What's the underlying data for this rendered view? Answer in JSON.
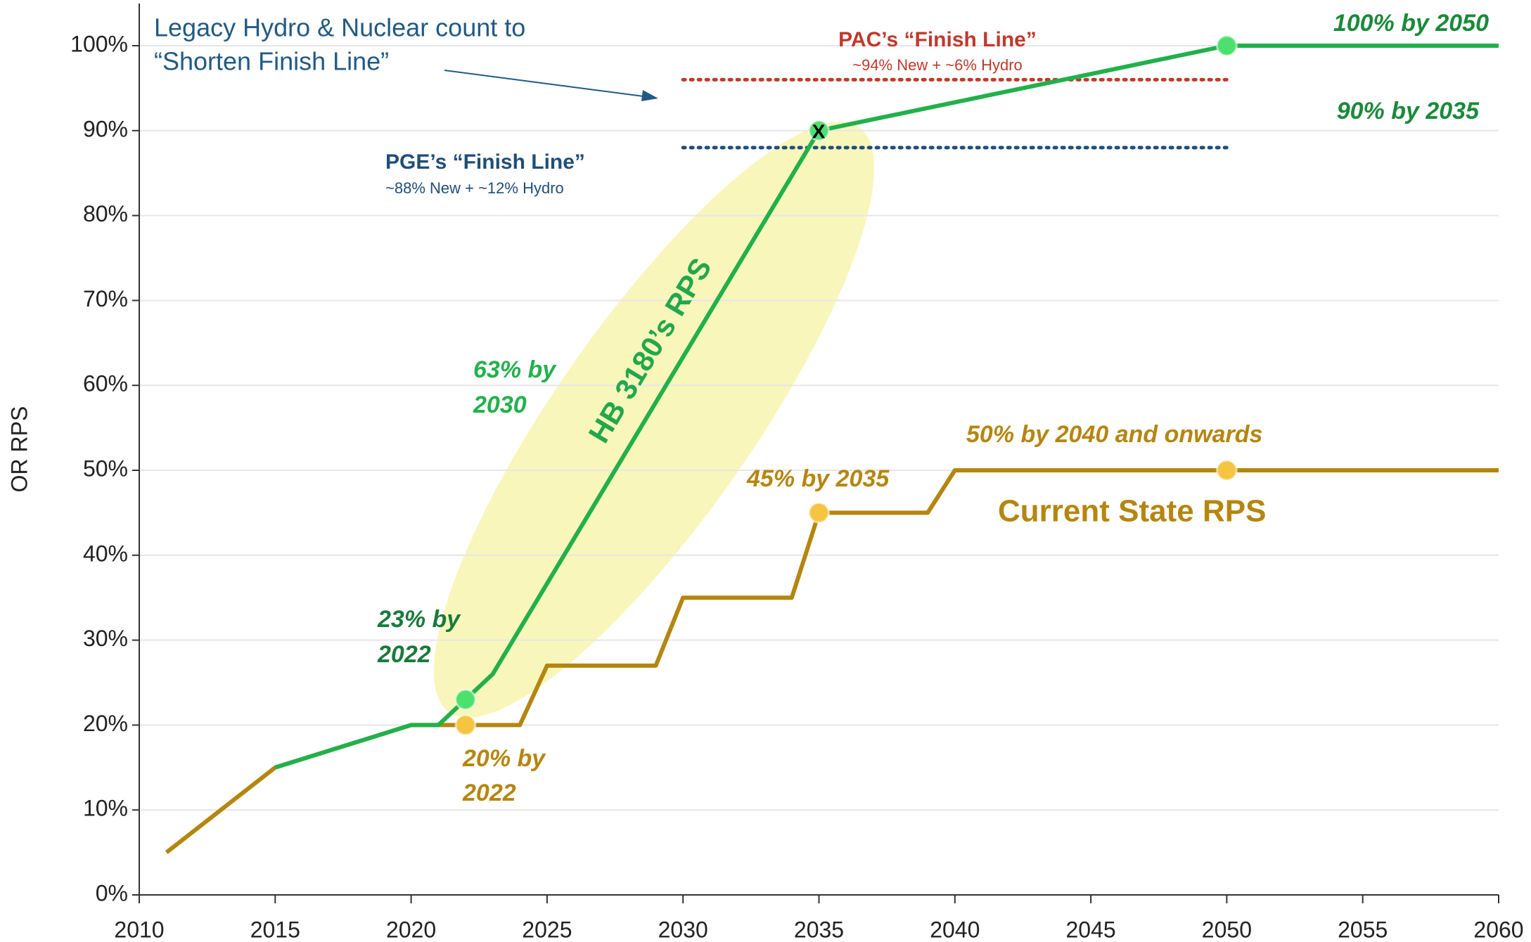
{
  "chart_data": {
    "type": "line",
    "ylabel": "OR RPS",
    "xlim": [
      2010,
      2060
    ],
    "xticks": [
      2010,
      2015,
      2020,
      2025,
      2030,
      2035,
      2040,
      2045,
      2050,
      2055,
      2060
    ],
    "ylim": [
      0,
      100
    ],
    "yticks": [
      {
        "value": 0,
        "label": "0%"
      },
      {
        "value": 10,
        "label": "10%"
      },
      {
        "value": 20,
        "label": "20%"
      },
      {
        "value": 30,
        "label": "30%"
      },
      {
        "value": 40,
        "label": "40%"
      },
      {
        "value": 50,
        "label": "50%"
      },
      {
        "value": 60,
        "label": "60%"
      },
      {
        "value": 70,
        "label": "70%"
      },
      {
        "value": 80,
        "label": "80%"
      },
      {
        "value": 90,
        "label": "90%"
      },
      {
        "value": 100,
        "label": "100%"
      }
    ],
    "grid": true,
    "series": [
      {
        "name": "Current State RPS",
        "color": "#b5860f",
        "x": [
          2011,
          2015,
          2020,
          2024,
          2025,
          2029,
          2030,
          2034,
          2035,
          2039,
          2040,
          2060
        ],
        "values": [
          5,
          15,
          20,
          20,
          27,
          27,
          35,
          35,
          45,
          45,
          50,
          50
        ]
      },
      {
        "name": "HB 3180’s RPS",
        "color": "#22b04b",
        "x": [
          2015,
          2020,
          2021,
          2022,
          2023,
          2035,
          2050,
          2060
        ],
        "values": [
          15,
          20,
          20,
          23,
          26,
          90,
          100,
          100
        ]
      }
    ],
    "points": {
      "x": [
        2022,
        2035,
        2050,
        2022,
        2035,
        2050
      ],
      "y": [
        20,
        45,
        50,
        23,
        90,
        100
      ],
      "colors": [
        "#f5c542",
        "#f5c542",
        "#f5c542",
        "#4ee06e",
        "#4ee06e",
        "#4ee06e"
      ]
    },
    "reference_lines": [
      {
        "label": "PAC’s “Finish Line”",
        "sublabel": "~94% New + ~6% Hydro",
        "y": 96,
        "x": [
          2030,
          2050
        ],
        "color": "#c0392b"
      },
      {
        "label": "PGE’s “Finish Line”",
        "sublabel": "~88% New + ~12% Hydro",
        "y": 88,
        "x": [
          2030,
          2050
        ],
        "color": "#1f4e79"
      }
    ],
    "annotations": [
      {
        "lines": [
          "Legacy Hydro & Nuclear count to",
          "“Shorten Finish Line”"
        ]
      },
      {
        "lines": [
          "100% by 2050"
        ]
      },
      {
        "lines": [
          "90% by 2035"
        ]
      },
      {
        "lines": [
          "63% by",
          "2030"
        ]
      },
      {
        "lines": [
          "23% by",
          "2022"
        ]
      },
      {
        "lines": [
          "20% by",
          "2022"
        ]
      },
      {
        "lines": [
          "45% by 2035"
        ]
      },
      {
        "lines": [
          "50% by 2040 and onwards"
        ]
      },
      {
        "lines": [
          "X"
        ]
      }
    ]
  }
}
